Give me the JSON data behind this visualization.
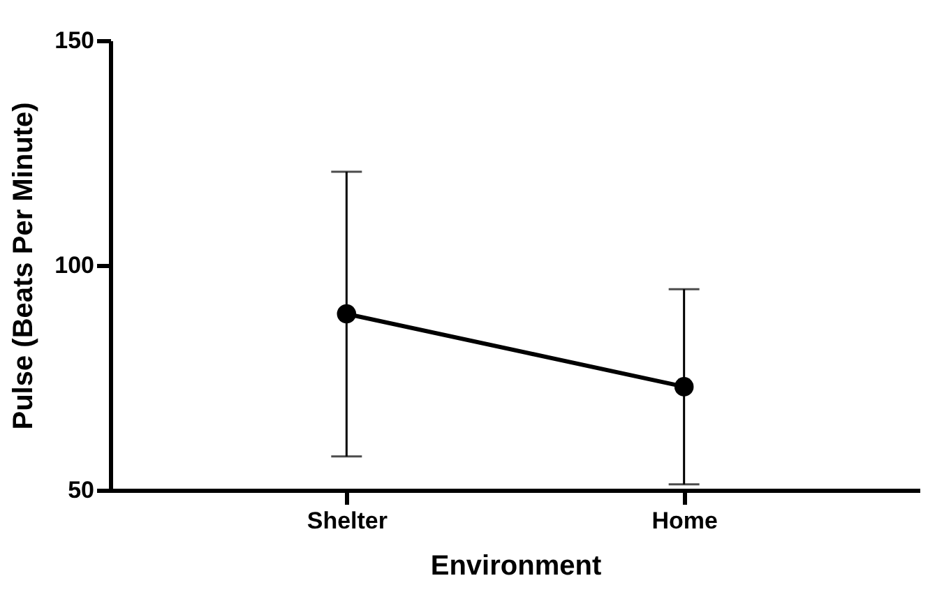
{
  "chart_data": {
    "type": "line",
    "xlabel": "Environment",
    "ylabel": "Pulse (Beats Per Minute)",
    "categories": [
      "Shelter",
      "Home"
    ],
    "series": [
      {
        "color": "#000000",
        "values": [
          89.2,
          73.0
        ],
        "errors": [
          [
            57.5,
            120.8
          ],
          [
            51.3,
            94.7
          ]
        ]
      }
    ],
    "ylim": [
      50,
      150
    ],
    "yticks": [
      50,
      100,
      150
    ],
    "grid": false,
    "marker": "circle",
    "line_style": "solid"
  }
}
